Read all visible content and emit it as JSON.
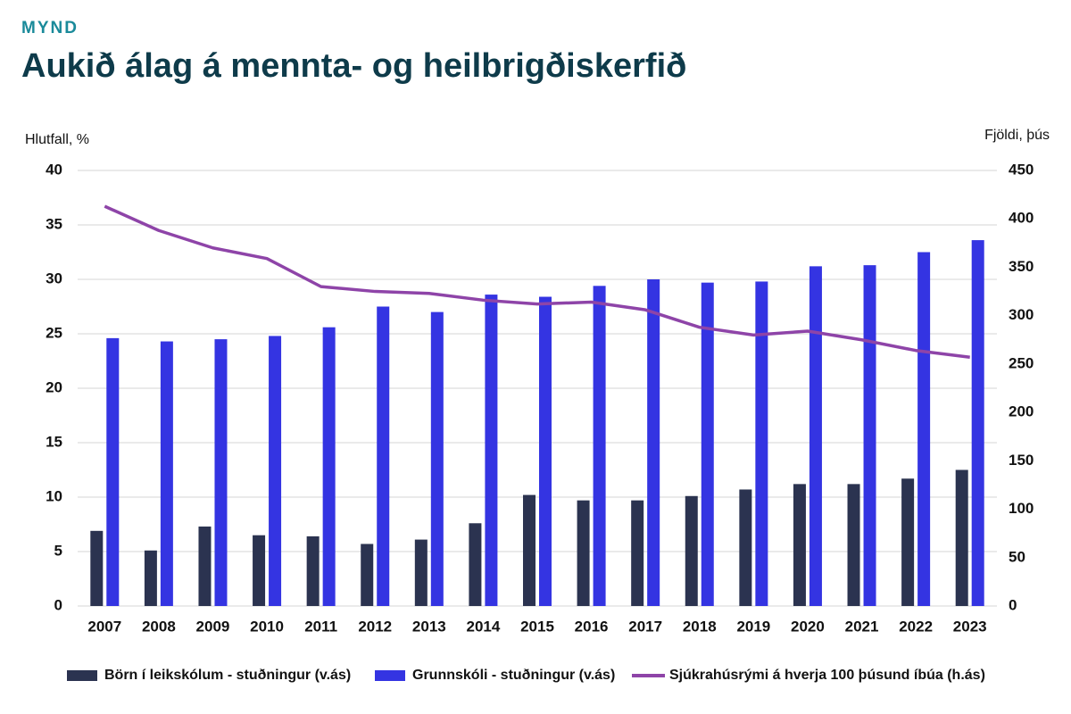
{
  "chart_data": {
    "type": "bar-line",
    "kicker": "MYND",
    "title": "Aukið álag á mennta- og heilbrigðiskerfið",
    "y_label": "Hlutfall, %",
    "y2_label": "Fjöldi, þús",
    "categories": [
      "2007",
      "2008",
      "2009",
      "2010",
      "2011",
      "2012",
      "2013",
      "2014",
      "2015",
      "2016",
      "2017",
      "2018",
      "2019",
      "2020",
      "2021",
      "2022",
      "2023"
    ],
    "series": [
      {
        "name": "Börn í leikskólum - stuðningur (v.ás)",
        "color": "#2b3350",
        "type": "bar",
        "values": [
          6.9,
          5.1,
          7.3,
          6.5,
          6.4,
          5.7,
          6.1,
          7.6,
          10.2,
          9.7,
          9.7,
          10.1,
          10.7,
          11.2,
          11.2,
          11.7,
          12.5
        ]
      },
      {
        "name": "Grunnskóli - stuðningur (v.ás)",
        "color": "#3434e2",
        "type": "bar",
        "values": [
          24.6,
          24.3,
          24.5,
          24.8,
          25.6,
          27.5,
          27.0,
          28.6,
          28.4,
          29.4,
          30.0,
          29.7,
          29.8,
          31.2,
          31.3,
          32.5,
          33.6
        ]
      },
      {
        "name": "Sjúkrahúsrými á hverja 100 þúsund íbúa (h.ás)",
        "color": "#8e44a8",
        "type": "line",
        "axis": "y2",
        "values": [
          413,
          388,
          370,
          359,
          330,
          325,
          323,
          316,
          312,
          314,
          306,
          288,
          280,
          284,
          275,
          264,
          257
        ]
      }
    ],
    "ylim": [
      0,
      40
    ],
    "yticks": [
      0,
      5,
      10,
      15,
      20,
      25,
      30,
      35,
      40
    ],
    "y2lim": [
      0,
      450
    ],
    "y2ticks": [
      0,
      50,
      100,
      150,
      200,
      250,
      300,
      350,
      400,
      450
    ],
    "grid": true
  }
}
